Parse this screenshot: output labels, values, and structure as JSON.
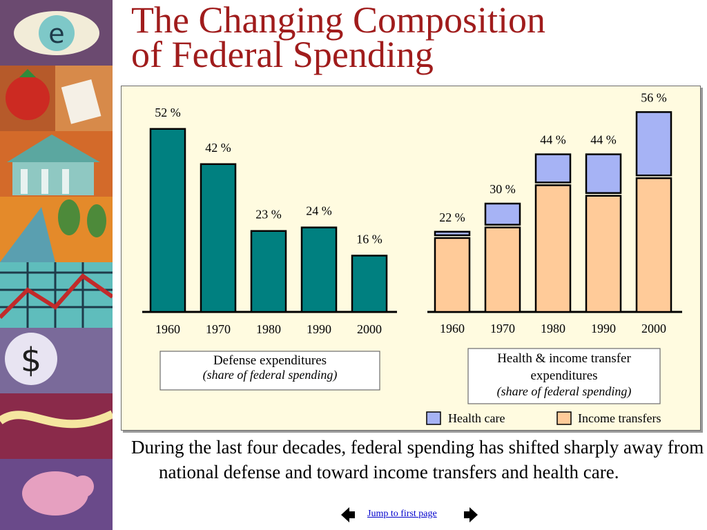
{
  "slide": {
    "title_line1": "The Changing Composition",
    "title_line2": "of Federal Spending",
    "caption": "During the last four decades, federal spending has shifted sharply away from national defense and toward income transfers and health care.",
    "nav_link": "Jump to first page",
    "prev_icon": "left-arrow-icon",
    "next_icon": "right-arrow-icon"
  },
  "colors": {
    "title": "#A01C1C",
    "defense": "#008080",
    "health_care": "#A6B3F5",
    "income_transfers": "#FFCB99",
    "panel": "#FFFBE0"
  },
  "chart_data": [
    {
      "type": "bar",
      "categories": [
        "1960",
        "1970",
        "1980",
        "1990",
        "2000"
      ],
      "values": [
        52,
        42,
        23,
        24,
        16
      ],
      "data_labels": [
        "52 %",
        "42 %",
        "23 %",
        "24 %",
        "16 %"
      ],
      "label_line1": "Defense expenditures",
      "label_line2": "(share of federal spending)",
      "ylim": [
        0,
        56
      ]
    },
    {
      "type": "bar",
      "stacked": true,
      "categories": [
        "1960",
        "1970",
        "1980",
        "1990",
        "2000"
      ],
      "totals": [
        22,
        30,
        44,
        44,
        56
      ],
      "data_labels": [
        "22 %",
        "30 %",
        "44 %",
        "44 %",
        "56 %"
      ],
      "series": [
        {
          "name": "Income transfers",
          "values": [
            21,
            24,
            36,
            33,
            38
          ]
        },
        {
          "name": "Health care",
          "values": [
            1,
            6,
            8,
            11,
            18
          ]
        }
      ],
      "label_line1": "Health & income transfer",
      "label_line2": "expenditures",
      "label_line3": "(share of federal spending)",
      "legend": [
        "Health care",
        "Income transfers"
      ],
      "ylim": [
        0,
        56
      ]
    }
  ]
}
